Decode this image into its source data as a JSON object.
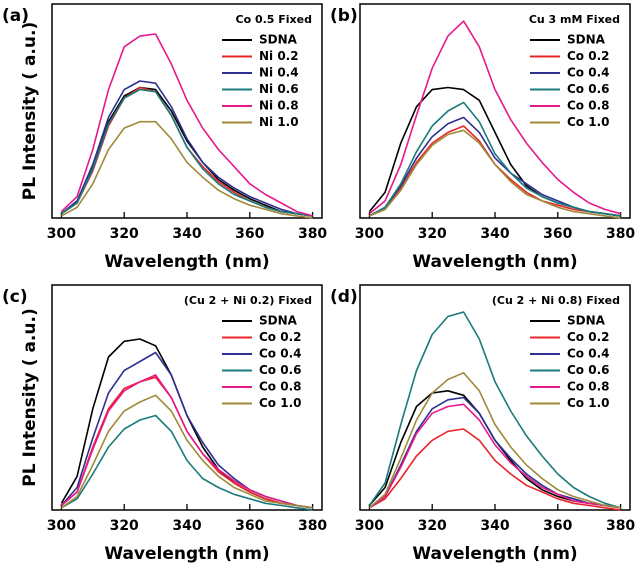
{
  "chart_data": [
    {
      "type": "line",
      "panel": "(a)",
      "title": "Co 0.5 Fixed",
      "xlabel": "Wavelength (nm)",
      "ylabel": "PL Intensity ( a.u.)",
      "x": [
        300,
        305,
        310,
        315,
        320,
        325,
        330,
        335,
        340,
        345,
        350,
        355,
        360,
        365,
        370,
        375,
        380
      ],
      "xlim": [
        297,
        383
      ],
      "xticks": [
        300,
        320,
        340,
        360,
        380
      ],
      "ylim": [
        0,
        100
      ],
      "series": [
        {
          "name": "SDNA",
          "color": "#000000",
          "values": [
            2,
            8,
            24,
            45,
            57,
            61,
            60,
            50,
            36,
            26,
            18,
            13,
            9,
            6,
            3,
            2,
            1
          ]
        },
        {
          "name": "Ni 0.2",
          "color": "#e8262a",
          "values": [
            2,
            7,
            22,
            43,
            56,
            61,
            59,
            48,
            33,
            24,
            17,
            12,
            8,
            5,
            3,
            2,
            1
          ]
        },
        {
          "name": "Ni 0.4",
          "color": "#2e3192",
          "values": [
            2,
            8,
            25,
            47,
            60,
            64,
            63,
            52,
            37,
            26,
            19,
            14,
            10,
            7,
            4,
            2,
            1
          ]
        },
        {
          "name": "Ni 0.6",
          "color": "#1b7a7a",
          "values": [
            2,
            7,
            23,
            44,
            56,
            60,
            59,
            48,
            33,
            23,
            16,
            11,
            8,
            5,
            3,
            2,
            1
          ]
        },
        {
          "name": "Ni 0.8",
          "color": "#e6198c",
          "values": [
            3,
            10,
            32,
            60,
            80,
            85,
            86,
            72,
            55,
            42,
            32,
            24,
            16,
            11,
            7,
            3,
            1
          ]
        },
        {
          "name": "Ni 1.0",
          "color": "#a08a3a",
          "values": [
            1,
            5,
            16,
            32,
            42,
            45,
            45,
            37,
            26,
            19,
            13,
            9,
            6,
            4,
            2,
            1,
            0
          ]
        }
      ]
    },
    {
      "type": "line",
      "panel": "(b)",
      "title": "Cu 3 mM Fixed",
      "xlabel": "Wavelength (nm)",
      "x": [
        300,
        305,
        310,
        315,
        320,
        325,
        330,
        335,
        340,
        345,
        350,
        355,
        360,
        365,
        370,
        375,
        380
      ],
      "xlim": [
        297,
        383
      ],
      "xticks": [
        300,
        320,
        340,
        360,
        380
      ],
      "ylim": [
        0,
        100
      ],
      "series": [
        {
          "name": "SDNA",
          "color": "#000000",
          "values": [
            3,
            12,
            35,
            52,
            60,
            61,
            60,
            55,
            40,
            25,
            15,
            10,
            7,
            5,
            3,
            2,
            1
          ]
        },
        {
          "name": "Co 0.2",
          "color": "#e8262a",
          "values": [
            1,
            4,
            14,
            26,
            35,
            40,
            43,
            36,
            25,
            18,
            12,
            8,
            6,
            4,
            3,
            2,
            1
          ]
        },
        {
          "name": "Co 0.4",
          "color": "#2e3192",
          "values": [
            1,
            5,
            15,
            28,
            38,
            44,
            47,
            40,
            28,
            21,
            16,
            11,
            8,
            5,
            3,
            2,
            1
          ]
        },
        {
          "name": "Co 0.6",
          "color": "#1b7a7a",
          "values": [
            1,
            5,
            16,
            31,
            43,
            50,
            54,
            45,
            30,
            21,
            14,
            10,
            7,
            5,
            3,
            2,
            1
          ]
        },
        {
          "name": "Co 0.8",
          "color": "#e6198c",
          "values": [
            2,
            8,
            25,
            48,
            70,
            85,
            92,
            80,
            60,
            46,
            35,
            26,
            18,
            12,
            7,
            4,
            2
          ]
        },
        {
          "name": "Co 1.0",
          "color": "#a08a3a",
          "values": [
            1,
            4,
            13,
            25,
            34,
            39,
            41,
            35,
            25,
            17,
            11,
            8,
            5,
            3,
            2,
            1,
            0
          ]
        }
      ]
    },
    {
      "type": "line",
      "panel": "(c)",
      "title": "(Cu 2 + Ni 0.2) Fixed",
      "xlabel": "Wavelength (nm)",
      "ylabel": "PL Intensity ( a.u.)",
      "x": [
        300,
        305,
        310,
        315,
        320,
        325,
        330,
        335,
        340,
        345,
        350,
        355,
        360,
        365,
        370,
        375,
        380
      ],
      "xlim": [
        297,
        383
      ],
      "xticks": [
        300,
        320,
        340,
        360,
        380
      ],
      "ylim": [
        0,
        100
      ],
      "series": [
        {
          "name": "SDNA",
          "color": "#000000",
          "values": [
            3,
            15,
            45,
            68,
            75,
            76,
            73,
            60,
            42,
            28,
            18,
            12,
            8,
            5,
            3,
            2,
            1
          ]
        },
        {
          "name": "Co 0.2",
          "color": "#e8262a",
          "values": [
            2,
            8,
            28,
            45,
            54,
            57,
            59,
            50,
            35,
            25,
            17,
            12,
            8,
            5,
            3,
            2,
            1
          ]
        },
        {
          "name": "Co 0.4",
          "color": "#2e3192",
          "values": [
            2,
            10,
            32,
            52,
            62,
            66,
            70,
            60,
            42,
            30,
            20,
            14,
            9,
            6,
            4,
            2,
            1
          ]
        },
        {
          "name": "Co 0.6",
          "color": "#1b7a7a",
          "values": [
            1,
            5,
            16,
            28,
            36,
            40,
            42,
            35,
            22,
            14,
            10,
            7,
            5,
            3,
            2,
            1,
            0
          ]
        },
        {
          "name": "Co 0.8",
          "color": "#e6198c",
          "values": [
            2,
            8,
            27,
            44,
            53,
            57,
            60,
            50,
            35,
            25,
            18,
            13,
            9,
            6,
            4,
            2,
            1
          ]
        },
        {
          "name": "Co 1.0",
          "color": "#a08a3a",
          "values": [
            1,
            6,
            20,
            35,
            44,
            48,
            51,
            44,
            31,
            22,
            15,
            10,
            7,
            4,
            3,
            2,
            1
          ]
        }
      ]
    },
    {
      "type": "line",
      "panel": "(d)",
      "title": "(Cu 2 + Ni 0.8) Fixed",
      "xlabel": "Wavelength (nm)",
      "x": [
        300,
        305,
        310,
        315,
        320,
        325,
        330,
        335,
        340,
        345,
        350,
        355,
        360,
        365,
        370,
        375,
        380
      ],
      "xlim": [
        297,
        383
      ],
      "xticks": [
        300,
        320,
        340,
        360,
        380
      ],
      "ylim": [
        0,
        100
      ],
      "series": [
        {
          "name": "SDNA",
          "color": "#000000",
          "values": [
            2,
            10,
            30,
            46,
            52,
            53,
            51,
            43,
            31,
            22,
            14,
            9,
            6,
            4,
            3,
            2,
            1
          ]
        },
        {
          "name": "Co 0.2",
          "color": "#e8262a",
          "values": [
            1,
            5,
            14,
            24,
            31,
            35,
            36,
            31,
            22,
            16,
            11,
            8,
            5,
            3,
            2,
            1,
            0
          ]
        },
        {
          "name": "Co 0.4",
          "color": "#2e3192",
          "values": [
            1,
            6,
            20,
            35,
            45,
            49,
            50,
            43,
            31,
            23,
            16,
            11,
            7,
            5,
            3,
            2,
            1
          ]
        },
        {
          "name": "Co 0.6",
          "color": "#1b7a7a",
          "values": [
            2,
            12,
            38,
            62,
            78,
            86,
            88,
            76,
            57,
            44,
            33,
            24,
            16,
            10,
            6,
            3,
            1
          ]
        },
        {
          "name": "Co 0.8",
          "color": "#e6198c",
          "values": [
            1,
            6,
            19,
            34,
            43,
            46,
            47,
            40,
            29,
            21,
            15,
            10,
            7,
            4,
            3,
            2,
            1
          ]
        },
        {
          "name": "Co 1.0",
          "color": "#a08a3a",
          "values": [
            1,
            7,
            23,
            40,
            52,
            58,
            61,
            53,
            38,
            28,
            20,
            14,
            9,
            6,
            4,
            2,
            1
          ]
        }
      ]
    }
  ]
}
